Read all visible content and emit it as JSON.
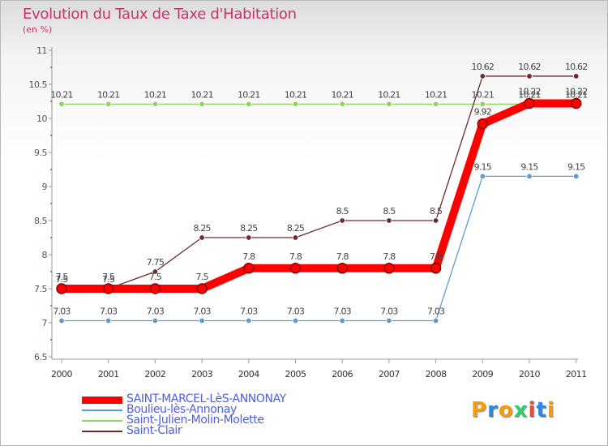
{
  "title": "Evolution du Taux de Taxe d'Habitation",
  "unit_label": "(en %)",
  "logo": {
    "text": "Proxiti",
    "letter_colors": [
      "#f39c12",
      "#2e86de",
      "#f39c12",
      "#2ecc71",
      "#e74c3c",
      "#2e86de",
      "#f39c12"
    ]
  },
  "chart_data": {
    "type": "line",
    "x": [
      "2000",
      "2001",
      "2002",
      "2003",
      "2004",
      "2005",
      "2006",
      "2007",
      "2008",
      "2009",
      "2010",
      "2011"
    ],
    "ylim": [
      6.5,
      11
    ],
    "yticks": [
      "6.5",
      "7",
      "7.5",
      "8",
      "8.5",
      "9",
      "9.5",
      "10",
      "10.5",
      "11"
    ],
    "grid": false,
    "legend_position": "bottom-left",
    "series": [
      {
        "name": "SAINT-MARCEL-LèS-ANNONAY",
        "color": "#ff0000",
        "emphasis": true,
        "values": [
          7.5,
          7.5,
          7.5,
          7.5,
          7.8,
          7.8,
          7.8,
          7.8,
          7.8,
          9.92,
          10.22,
          10.22
        ],
        "labels": [
          "7.5",
          "7.5",
          "7.5",
          "7.5",
          "7.8",
          "7.8",
          "7.8",
          "7.8",
          "7.8",
          "9.92",
          "10.22",
          "10.22"
        ]
      },
      {
        "name": "Boulieu-lès-Annonay",
        "color": "#5b9bd5",
        "values": [
          7.03,
          7.03,
          7.03,
          7.03,
          7.03,
          7.03,
          7.03,
          7.03,
          7.03,
          9.15,
          9.15,
          9.15
        ],
        "labels": [
          "7.03",
          "7.03",
          "7.03",
          "7.03",
          "7.03",
          "7.03",
          "7.03",
          "7.03",
          "7.03",
          "9.15",
          "9.15",
          "9.15"
        ]
      },
      {
        "name": "Saint-Julien-Molin-Molette",
        "color": "#8ed460",
        "values": [
          10.21,
          10.21,
          10.21,
          10.21,
          10.21,
          10.21,
          10.21,
          10.21,
          10.21,
          10.21,
          10.21,
          10.21
        ],
        "labels": [
          "10.21",
          "10.21",
          "10.21",
          "10.21",
          "10.21",
          "10.21",
          "10.21",
          "10.21",
          "10.21",
          "10.21",
          "10.21",
          "10.21"
        ]
      },
      {
        "name": "Saint-Clair",
        "color": "#6e2b2b",
        "values": [
          7.5,
          7.5,
          7.75,
          8.25,
          8.25,
          8.25,
          8.5,
          8.5,
          8.5,
          10.62,
          10.62,
          10.62
        ],
        "labels": [
          "7.5",
          "7.5",
          "7.75",
          "8.25",
          "8.25",
          "8.25",
          "8.5",
          "8.5",
          "8.5",
          "10.62",
          "10.62",
          "10.62"
        ]
      }
    ]
  }
}
